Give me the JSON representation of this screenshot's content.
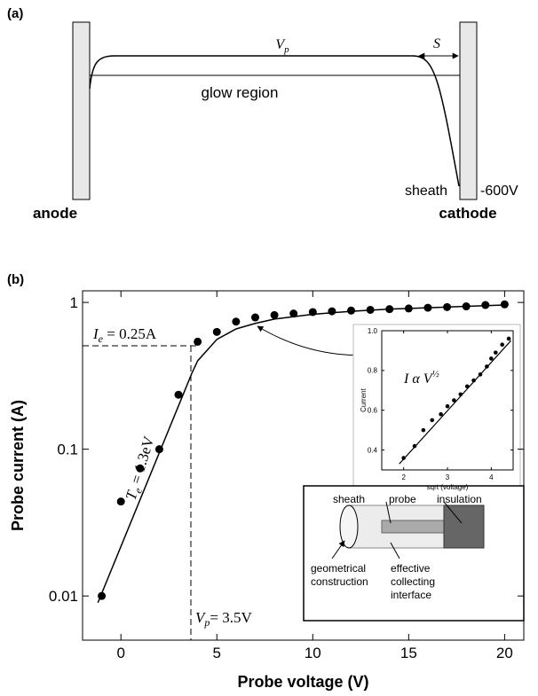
{
  "panel_a": {
    "label": "(a)",
    "vp": [
      "V",
      "p"
    ],
    "s": "S",
    "glow": "glow region",
    "sheath": "sheath",
    "voltage": "-600V",
    "anode": "anode",
    "cathode": "cathode"
  },
  "chart_data": [
    {
      "type": "scatter",
      "panel_label": "(b)",
      "xlabel": "Probe voltage (V)",
      "ylabel": "Probe current (A)",
      "xlim": [
        -2,
        21
      ],
      "ylim": [
        0.005,
        1.2
      ],
      "yscale": "log",
      "xticks": [
        0,
        5,
        10,
        15,
        20
      ],
      "yticks": [
        0.01,
        0.1,
        1
      ],
      "series": [
        {
          "type": "scatter",
          "color": "#000000",
          "x": [
            -1,
            0,
            1,
            2,
            3,
            4,
            5,
            6,
            7,
            8,
            9,
            10,
            11,
            12,
            13,
            14,
            15,
            16,
            17,
            18,
            19,
            20
          ],
          "values": [
            0.01,
            0.044,
            0.074,
            0.1,
            0.235,
            0.54,
            0.63,
            0.74,
            0.79,
            0.82,
            0.84,
            0.86,
            0.87,
            0.88,
            0.89,
            0.9,
            0.91,
            0.92,
            0.93,
            0.94,
            0.96,
            0.97
          ]
        },
        {
          "type": "line",
          "color": "#000000",
          "x": [
            -1.2,
            3.7
          ],
          "values": [
            0.009,
            0.33
          ]
        },
        {
          "type": "line",
          "color": "#000000",
          "x": [
            3.7,
            4,
            5,
            6,
            7,
            8,
            10,
            12,
            14,
            16,
            18,
            20
          ],
          "values": [
            0.33,
            0.4,
            0.56,
            0.66,
            0.72,
            0.77,
            0.83,
            0.87,
            0.9,
            0.92,
            0.94,
            0.96
          ]
        }
      ],
      "annotations": [
        [
          "I",
          "e",
          " = 0.25A"
        ],
        [
          "T",
          "e",
          " = 1.3eV"
        ],
        [
          "V",
          "p",
          "= 3.5V"
        ]
      ]
    },
    {
      "type": "scatter",
      "xlabel": "sqrt (voltage)",
      "ylabel": "Current",
      "xlim": [
        1.5,
        4.5
      ],
      "ylim": [
        0.3,
        1.0
      ],
      "xticks": [
        2,
        3,
        4
      ],
      "yticks": [
        0.4,
        0.6,
        0.8,
        {
          "value": 1.0,
          "label": "1.0"
        }
      ],
      "series": [
        {
          "type": "scatter",
          "color": "#000000",
          "x": [
            2.0,
            2.25,
            2.45,
            2.65,
            2.85,
            3.0,
            3.15,
            3.3,
            3.45,
            3.6,
            3.75,
            3.9,
            4.0,
            4.1,
            4.25,
            4.4
          ],
          "values": [
            0.36,
            0.42,
            0.5,
            0.55,
            0.58,
            0.62,
            0.65,
            0.68,
            0.72,
            0.75,
            0.78,
            0.82,
            0.86,
            0.89,
            0.93,
            0.96
          ]
        },
        {
          "type": "line",
          "color": "#000000",
          "x": [
            1.9,
            4.45
          ],
          "values": [
            0.33,
            0.95
          ]
        }
      ],
      "annotations": [
        [
          "I α V",
          "½"
        ]
      ]
    }
  ],
  "inset_diagram": {
    "sheath": "sheath",
    "probe": "probe",
    "insulation": "insulation",
    "geometrical": [
      "geometrical",
      "construction"
    ],
    "effective": [
      "effective",
      "collecting",
      "interface"
    ]
  }
}
